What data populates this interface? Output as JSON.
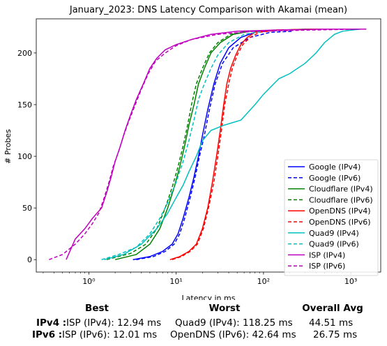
{
  "chart_data": {
    "type": "line",
    "title": "January_2023: DNS Latency Comparison with Akamai (mean)",
    "xlabel": "Latency in ms",
    "ylabel": "# Probes",
    "xscale": "log",
    "xlim": [
      0.25,
      2200
    ],
    "ylim": [
      -12,
      233
    ],
    "xticks": [
      {
        "value": 1,
        "label": "10⁰"
      },
      {
        "value": 10,
        "label": "10¹"
      },
      {
        "value": 100,
        "label": "10²"
      },
      {
        "value": 1000,
        "label": "10³"
      }
    ],
    "yticks": [
      0,
      50,
      100,
      150,
      200
    ],
    "grid": false,
    "legend_position": "lower-right",
    "series": [
      {
        "name": "Google (IPv4)",
        "color": "#0000ff",
        "dash": "solid",
        "x": [
          3.2,
          5,
          7,
          9,
          10.5,
          12,
          14,
          16,
          18,
          20,
          23,
          27,
          32,
          40,
          55,
          80,
          150,
          400,
          1500
        ],
        "y": [
          0,
          3,
          8,
          15,
          25,
          40,
          60,
          80,
          100,
          120,
          145,
          170,
          190,
          205,
          215,
          220,
          222,
          223,
          223
        ]
      },
      {
        "name": "Google (IPv6)",
        "color": "#0000ff",
        "dash": "dashed",
        "x": [
          3.5,
          5.5,
          7.5,
          9.5,
          11,
          12.5,
          14.5,
          16.5,
          18.5,
          21,
          24,
          28,
          34,
          45,
          70,
          120,
          220
        ],
        "y": [
          0,
          3,
          8,
          15,
          25,
          40,
          60,
          80,
          100,
          120,
          145,
          170,
          190,
          205,
          215,
          220,
          221
        ]
      },
      {
        "name": "Cloudflare (IPv4)",
        "color": "#008000",
        "dash": "solid",
        "x": [
          2,
          3.5,
          5,
          6.5,
          8,
          9.5,
          11,
          12.5,
          14,
          16,
          18,
          21,
          25,
          32,
          45,
          70,
          300,
          1500
        ],
        "y": [
          0,
          5,
          15,
          30,
          50,
          70,
          90,
          110,
          130,
          150,
          170,
          185,
          200,
          210,
          218,
          221,
          223,
          223
        ]
      },
      {
        "name": "Cloudflare (IPv6)",
        "color": "#008000",
        "dash": "dashed",
        "x": [
          1.6,
          3,
          4.5,
          6,
          7.5,
          9,
          10.5,
          12,
          13.5,
          15,
          17,
          20,
          24,
          30,
          42,
          65,
          130
        ],
        "y": [
          0,
          6,
          15,
          30,
          50,
          70,
          90,
          110,
          130,
          150,
          170,
          185,
          200,
          210,
          218,
          221,
          222
        ]
      },
      {
        "name": "OpenDNS (IPv4)",
        "color": "#ff0000",
        "dash": "solid",
        "x": [
          8.5,
          11,
          14,
          17,
          20,
          23,
          26,
          29,
          32,
          35,
          38,
          42,
          48,
          55,
          65,
          80,
          120,
          400,
          1500
        ],
        "y": [
          0,
          3,
          8,
          15,
          30,
          50,
          75,
          100,
          125,
          150,
          170,
          185,
          198,
          208,
          215,
          220,
          222,
          223,
          223
        ]
      },
      {
        "name": "OpenDNS (IPv6)",
        "color": "#ff0000",
        "dash": "dashed",
        "x": [
          9,
          11.5,
          14.5,
          17.5,
          20.5,
          23.5,
          27,
          30,
          33,
          36,
          40,
          44,
          50,
          58,
          70,
          90,
          140,
          400,
          1400
        ],
        "y": [
          0,
          3,
          8,
          15,
          30,
          50,
          75,
          100,
          125,
          150,
          170,
          185,
          198,
          208,
          215,
          220,
          222,
          223,
          223
        ]
      },
      {
        "name": "Quad9 (IPv4)",
        "color": "#00bfbf",
        "dash": "solid",
        "x": [
          1.5,
          2.5,
          4,
          6,
          8,
          10,
          12,
          14,
          17,
          20,
          25,
          35,
          55,
          80,
          100,
          150,
          200,
          300,
          400,
          500,
          650,
          800,
          1000,
          1300
        ],
        "y": [
          0,
          5,
          15,
          30,
          45,
          60,
          72,
          85,
          100,
          115,
          125,
          130,
          135,
          150,
          160,
          175,
          180,
          190,
          200,
          210,
          218,
          221,
          222,
          223
        ]
      },
      {
        "name": "Quad9 (IPv6)",
        "color": "#00bfbf",
        "dash": "dashed",
        "x": [
          1.4,
          2.2,
          3.5,
          5,
          6.5,
          8,
          10,
          12,
          14,
          16,
          18,
          21,
          25,
          30,
          40,
          60,
          100
        ],
        "y": [
          0,
          5,
          12,
          25,
          40,
          55,
          75,
          95,
          115,
          135,
          155,
          170,
          185,
          198,
          210,
          218,
          221
        ]
      },
      {
        "name": "ISP (IPv4)",
        "color": "#bf00bf",
        "dash": "solid",
        "x": [
          0.55,
          0.7,
          0.9,
          1.1,
          1.4,
          1.6,
          1.8,
          2.0,
          2.3,
          2.6,
          3.0,
          3.5,
          4.2,
          5.0,
          6.0,
          7.5,
          10,
          15,
          25,
          50,
          120,
          500,
          1500
        ],
        "y": [
          0,
          20,
          30,
          40,
          50,
          65,
          80,
          95,
          110,
          125,
          140,
          155,
          170,
          185,
          195,
          203,
          208,
          213,
          218,
          221,
          222,
          223,
          223
        ]
      },
      {
        "name": "ISP (IPv6)",
        "color": "#bf00bf",
        "dash": "dashed",
        "x": [
          0.35,
          0.5,
          0.7,
          0.9,
          1.1,
          1.3,
          1.5,
          1.7,
          1.9,
          2.2,
          2.5,
          2.9,
          3.4,
          4.0,
          4.8,
          5.8,
          7.5,
          10,
          15,
          30,
          80,
          300,
          1200
        ],
        "y": [
          0,
          5,
          15,
          25,
          35,
          45,
          60,
          75,
          90,
          105,
          120,
          135,
          150,
          165,
          180,
          192,
          200,
          207,
          213,
          218,
          221,
          222,
          223
        ]
      }
    ]
  },
  "stats": {
    "headers": {
      "best": "Best",
      "worst": "Worst",
      "avg": "Overall Avg"
    },
    "rows": [
      {
        "label": "IPv4 :",
        "best": "ISP (IPv4): 12.94 ms",
        "worst": "Quad9 (IPv4): 118.25 ms",
        "avg": "44.51 ms"
      },
      {
        "label": "IPv6 :",
        "best": "ISP (IPv6): 12.01 ms",
        "worst": "OpenDNS (IPv6): 42.64 ms",
        "avg": "26.75 ms"
      }
    ]
  }
}
